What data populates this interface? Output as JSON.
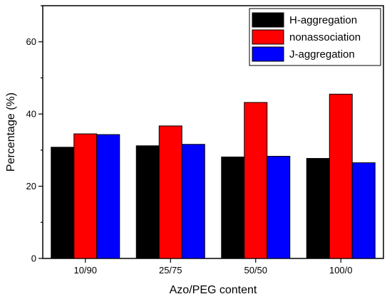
{
  "chart_data": {
    "type": "bar",
    "title": "",
    "xlabel": "Azo/PEG content",
    "ylabel": "Percentage (%)",
    "categories": [
      "10/90",
      "25/75",
      "50/50",
      "100/0"
    ],
    "ylim": [
      0,
      70
    ],
    "yticks": [
      0,
      20,
      40,
      60
    ],
    "grid": false,
    "legend_position": "top-right",
    "series": [
      {
        "name": "H-aggregation",
        "color": "#000000",
        "values": [
          30.8,
          31.2,
          28.1,
          27.7
        ]
      },
      {
        "name": "nonassociation",
        "color": "#ff0000",
        "values": [
          34.5,
          36.7,
          43.2,
          45.5
        ]
      },
      {
        "name": "J-aggregation",
        "color": "#0000ff",
        "values": [
          34.3,
          31.6,
          28.3,
          26.5
        ]
      }
    ]
  }
}
